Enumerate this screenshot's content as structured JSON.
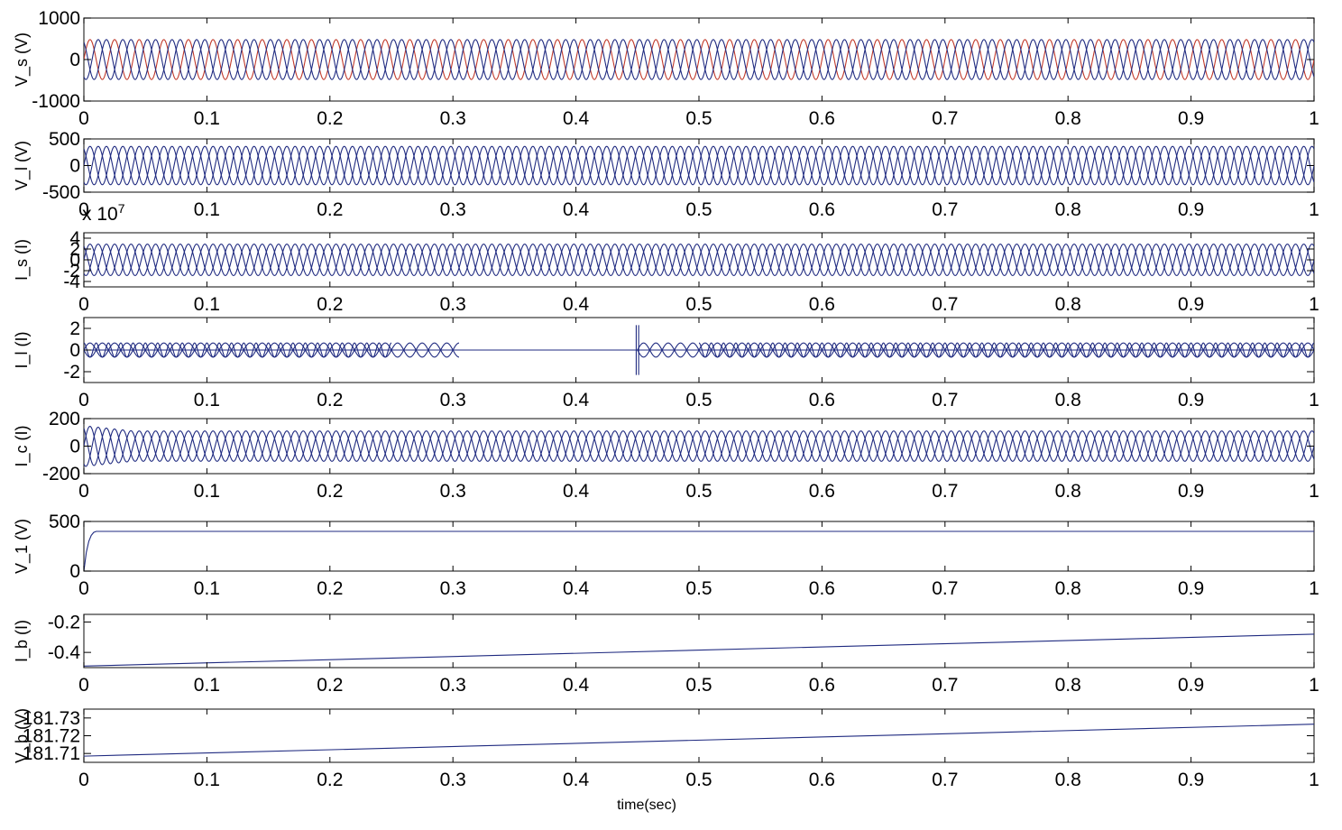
{
  "chart_data": [
    {
      "type": "line",
      "ylabel": "V_s (V)",
      "ylim": [
        -1000,
        1000
      ],
      "yticks": [
        "1000",
        "0",
        "-1000"
      ],
      "ytick_values": [
        1000,
        0,
        -1000
      ],
      "xlim": [
        0,
        1
      ],
      "xticks": [
        "0",
        "0.1",
        "0.2",
        "0.3",
        "0.4",
        "0.5",
        "0.6",
        "0.7",
        "0.8",
        "0.9",
        "1"
      ],
      "series": [
        {
          "kind": "sine",
          "amplitude": 480,
          "frequency": 50,
          "phase_deg": 0,
          "color": "#c0392b"
        },
        {
          "kind": "sine",
          "amplitude": 480,
          "frequency": 50,
          "phase_deg": -120,
          "color": "#1f2a80"
        },
        {
          "kind": "sine",
          "amplitude": 480,
          "frequency": 50,
          "phase_deg": 120,
          "color": "#1f2a80"
        }
      ]
    },
    {
      "type": "line",
      "ylabel": "V_l (V)",
      "ylim": [
        -500,
        500
      ],
      "yticks": [
        "500",
        "0",
        "-500"
      ],
      "ytick_values": [
        500,
        0,
        -500
      ],
      "xlim": [
        0,
        1
      ],
      "xticks": [
        "0",
        "0.1",
        "0.2",
        "0.3",
        "0.4",
        "0.5",
        "0.6",
        "0.7",
        "0.8",
        "0.9",
        "1"
      ],
      "series": [
        {
          "kind": "sine",
          "amplitude": 360,
          "frequency": 50,
          "phase_deg": 0,
          "color": "#1f2a80"
        },
        {
          "kind": "sine",
          "amplitude": 360,
          "frequency": 50,
          "phase_deg": -120,
          "color": "#1f2a80"
        },
        {
          "kind": "sine",
          "amplitude": 360,
          "frequency": 50,
          "phase_deg": 120,
          "color": "#1f2a80"
        }
      ]
    },
    {
      "type": "line",
      "ylabel": "I_s (I)",
      "ylim": [
        -5,
        5
      ],
      "yticks": [
        "4",
        "2",
        "0",
        "-2",
        "-4"
      ],
      "ytick_values": [
        4,
        2,
        0,
        -2,
        -4
      ],
      "multiplier": "x 10",
      "multiplier_exp": "7",
      "xlim": [
        0,
        1
      ],
      "xticks": [
        "0",
        "0.1",
        "0.2",
        "0.3",
        "0.4",
        "0.5",
        "0.6",
        "0.7",
        "0.8",
        "0.9",
        "1"
      ],
      "series": [
        {
          "kind": "sine",
          "amplitude": 2.9,
          "frequency": 50,
          "phase_deg": 0,
          "color": "#1f2a80"
        },
        {
          "kind": "sine",
          "amplitude": 2.9,
          "frequency": 50,
          "phase_deg": -120,
          "color": "#1f2a80"
        },
        {
          "kind": "sine",
          "amplitude": 2.9,
          "frequency": 50,
          "phase_deg": 120,
          "color": "#1f2a80"
        }
      ]
    },
    {
      "type": "line",
      "ylabel": "I_l (I)",
      "ylim": [
        -3,
        3
      ],
      "yticks": [
        "2",
        "0",
        "-2"
      ],
      "ytick_values": [
        2,
        0,
        -2
      ],
      "xlim": [
        0,
        1
      ],
      "xticks": [
        "0",
        "0.1",
        "0.2",
        "0.3",
        "0.4",
        "0.5",
        "0.6",
        "0.7",
        "0.8",
        "0.9",
        "1"
      ],
      "series": [
        {
          "kind": "sine_segments",
          "amplitude": 0.65,
          "frequency": 50,
          "phase_deg": 0,
          "color": "#1f2a80",
          "segments": [
            [
              0,
              0.305
            ],
            [
              0.45,
              0.5
            ],
            [
              0.5,
              1
            ]
          ]
        },
        {
          "kind": "sine_segments",
          "amplitude": 0.65,
          "frequency": 50,
          "phase_deg": 180,
          "color": "#1f2a80",
          "segments": [
            [
              0,
              0.305
            ],
            [
              0.45,
              0.5
            ],
            [
              0.5,
              1
            ]
          ]
        },
        {
          "kind": "sine_segments",
          "amplitude": 0.65,
          "frequency": 100,
          "phase_deg": 90,
          "color": "#1f2a80",
          "segments": [
            [
              0,
              0.25
            ],
            [
              0.5,
              1
            ]
          ]
        },
        {
          "kind": "points",
          "color": "#1f2a80",
          "x": [
            0,
            1
          ],
          "y": [
            0,
            0
          ]
        },
        {
          "kind": "points",
          "color": "#1f2a80",
          "x": [
            0.449,
            0.449,
            0.451,
            0.451
          ],
          "y": [
            2.3,
            -2.3,
            2.3,
            -2.3
          ],
          "spike": true
        }
      ]
    },
    {
      "type": "line",
      "ylabel": "I_c (I)",
      "ylim": [
        -200,
        200
      ],
      "yticks": [
        "200",
        "0",
        "-200"
      ],
      "ytick_values": [
        200,
        0,
        -200
      ],
      "xlim": [
        0,
        1
      ],
      "xticks": [
        "0",
        "0.1",
        "0.2",
        "0.3",
        "0.4",
        "0.5",
        "0.6",
        "0.7",
        "0.8",
        "0.9",
        "1"
      ],
      "series": [
        {
          "kind": "sine",
          "amplitude": 110,
          "frequency": 50,
          "phase_deg": 0,
          "color": "#1f2a80",
          "transient": 0.04
        },
        {
          "kind": "sine",
          "amplitude": 110,
          "frequency": 50,
          "phase_deg": -120,
          "color": "#1f2a80",
          "transient": 0.04
        },
        {
          "kind": "sine",
          "amplitude": 110,
          "frequency": 50,
          "phase_deg": 120,
          "color": "#1f2a80",
          "transient": 0.04
        }
      ]
    },
    {
      "type": "line",
      "ylabel": "V_1 (V)",
      "ylim": [
        0,
        500
      ],
      "yticks": [
        "500",
        "0"
      ],
      "ytick_values": [
        500,
        0
      ],
      "xlim": [
        0,
        1
      ],
      "xticks": [
        "0",
        "0.1",
        "0.2",
        "0.3",
        "0.4",
        "0.5",
        "0.6",
        "0.7",
        "0.8",
        "0.9",
        "1"
      ],
      "series": [
        {
          "kind": "points",
          "color": "#1f2a80",
          "x": [
            0,
            0.002,
            0.004,
            0.006,
            0.008,
            0.01,
            0.012,
            1
          ],
          "y": [
            0,
            190,
            300,
            360,
            390,
            400,
            400,
            400
          ]
        }
      ]
    },
    {
      "type": "line",
      "ylabel": "I_b (I)",
      "ylim": [
        -0.5,
        -0.15
      ],
      "yticks": [
        "-0.2",
        "-0.4"
      ],
      "ytick_values": [
        -0.2,
        -0.4
      ],
      "xlim": [
        0,
        1
      ],
      "xticks": [
        "0",
        "0.1",
        "0.2",
        "0.3",
        "0.4",
        "0.5",
        "0.6",
        "0.7",
        "0.8",
        "0.9",
        "1"
      ],
      "series": [
        {
          "kind": "points",
          "color": "#1f2a80",
          "x": [
            0,
            1
          ],
          "y": [
            -0.49,
            -0.28
          ]
        }
      ]
    },
    {
      "type": "line",
      "ylabel": "V_b (V)",
      "ylim": [
        181.705,
        181.735
      ],
      "yticks": [
        "181.73",
        "181.72",
        "181.71"
      ],
      "ytick_values": [
        181.73,
        181.72,
        181.71
      ],
      "xlabel": "time(sec)",
      "xlim": [
        0,
        1
      ],
      "xticks": [
        "0",
        "0.1",
        "0.2",
        "0.3",
        "0.4",
        "0.5",
        "0.6",
        "0.7",
        "0.8",
        "0.9",
        "1"
      ],
      "series": [
        {
          "kind": "points",
          "color": "#1f2a80",
          "x": [
            0,
            1
          ],
          "y": [
            181.7085,
            181.7265
          ]
        }
      ]
    }
  ]
}
